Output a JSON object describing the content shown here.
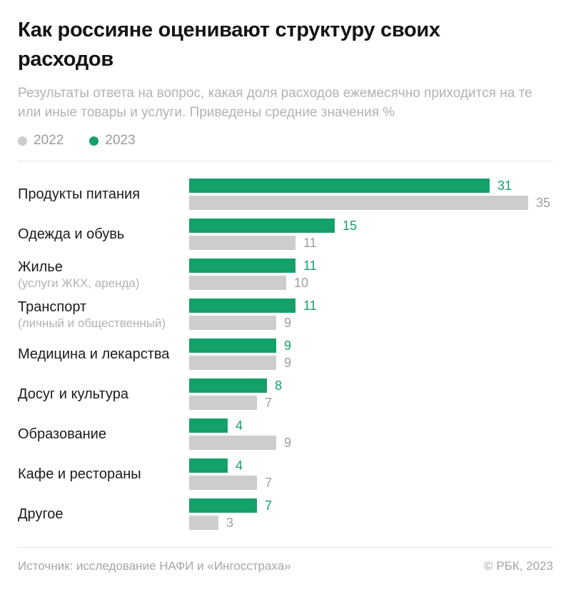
{
  "header": {
    "title": "Как россияне оценивают структуру своих расходов",
    "subtitle": "Результаты ответа на вопрос, какая доля расходов ежемесячно приходится на те или иные товары и услуги. Приведены средние значения %"
  },
  "legend": {
    "items": [
      {
        "label": "2022",
        "color": "#cdcdcd"
      },
      {
        "label": "2023",
        "color": "#14a069"
      }
    ]
  },
  "chart_data": {
    "type": "bar",
    "orientation": "horizontal",
    "unit": "%",
    "value_axis_max": 35,
    "grid": false,
    "legend_position": "top-left",
    "categories": [
      {
        "label": "Продукты питания",
        "sublabel": ""
      },
      {
        "label": "Одежда и обувь",
        "sublabel": ""
      },
      {
        "label": "Жилье",
        "sublabel": "(услуги ЖКХ, аренда)"
      },
      {
        "label": "Транспорт",
        "sublabel": "(личный и общественный)"
      },
      {
        "label": "Медицина и лекарства",
        "sublabel": ""
      },
      {
        "label": "Досуг и культура",
        "sublabel": ""
      },
      {
        "label": "Образование",
        "sublabel": ""
      },
      {
        "label": "Кафе и рестораны",
        "sublabel": ""
      },
      {
        "label": "Другое",
        "sublabel": ""
      }
    ],
    "series": [
      {
        "name": "2023",
        "color": "#14a069",
        "value_text_color": "#14a069",
        "values": [
          31,
          15,
          11,
          11,
          9,
          8,
          4,
          4,
          7
        ]
      },
      {
        "name": "2022",
        "color": "#cdcdcd",
        "value_text_color": "#9e9ea2",
        "values": [
          35,
          11,
          10,
          9,
          9,
          7,
          9,
          7,
          3
        ]
      }
    ]
  },
  "footer": {
    "source": "Источник: исследование НАФИ и «Ингосстраха»",
    "copyright": "© РБК, 2023"
  }
}
